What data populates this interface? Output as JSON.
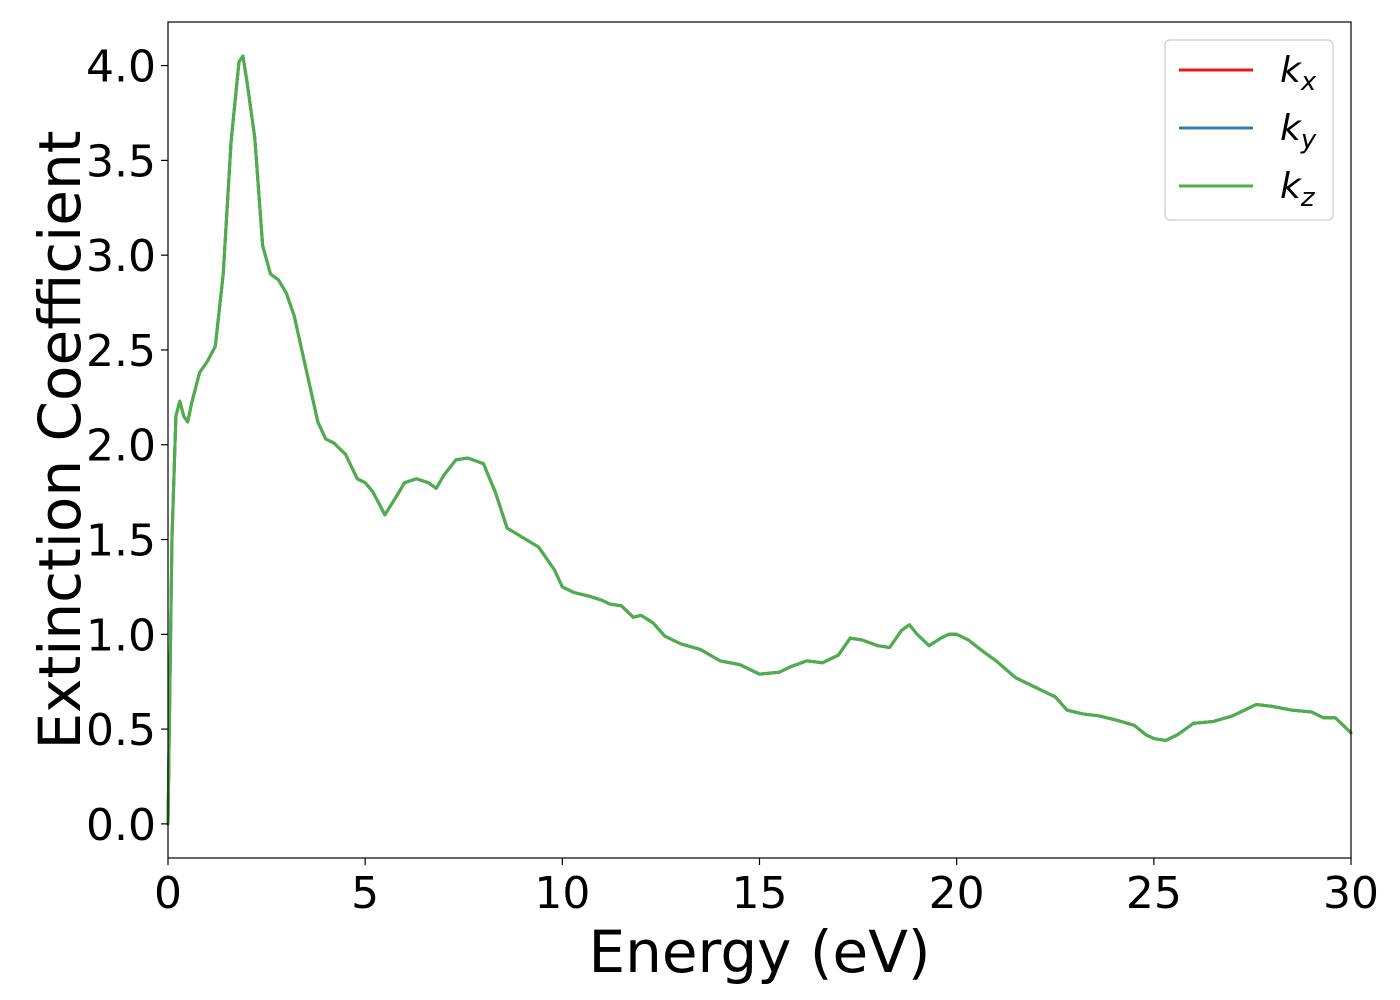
{
  "chart_data": {
    "type": "line",
    "title": "",
    "xlabel": "Energy (eV)",
    "ylabel": "Extinction Coefficient",
    "xlim": [
      0,
      30
    ],
    "ylim": [
      -0.18,
      4.23
    ],
    "xticks": [
      0,
      5,
      10,
      15,
      20,
      25,
      30
    ],
    "xtick_labels": [
      "0",
      "5",
      "10",
      "15",
      "20",
      "25",
      "30"
    ],
    "yticks": [
      0.0,
      0.5,
      1.0,
      1.5,
      2.0,
      2.5,
      3.0,
      3.5,
      4.0
    ],
    "ytick_labels": [
      "0.0",
      "0.5",
      "1.0",
      "1.5",
      "2.0",
      "2.5",
      "3.0",
      "3.5",
      "4.0"
    ],
    "grid": false,
    "legend_position": "top-right",
    "x": [
      0,
      0.1,
      0.2,
      0.3,
      0.4,
      0.5,
      0.6,
      0.8,
      1.0,
      1.2,
      1.4,
      1.6,
      1.8,
      1.9,
      2.0,
      2.2,
      2.4,
      2.6,
      2.8,
      3.0,
      3.2,
      3.5,
      3.8,
      4.0,
      4.2,
      4.5,
      4.8,
      5.0,
      5.2,
      5.5,
      5.8,
      6.0,
      6.3,
      6.6,
      6.8,
      7.0,
      7.3,
      7.6,
      8.0,
      8.3,
      8.6,
      9.0,
      9.4,
      9.8,
      10.0,
      10.3,
      10.7,
      11.0,
      11.2,
      11.5,
      11.8,
      12.0,
      12.3,
      12.6,
      13.0,
      13.5,
      14.0,
      14.5,
      15.0,
      15.5,
      15.8,
      16.2,
      16.6,
      17.0,
      17.3,
      17.6,
      18.0,
      18.3,
      18.6,
      18.8,
      19.0,
      19.3,
      19.6,
      19.8,
      20.0,
      20.3,
      20.6,
      21.0,
      21.5,
      22.0,
      22.5,
      22.8,
      23.2,
      23.6,
      24.0,
      24.5,
      24.8,
      25.0,
      25.3,
      25.6,
      26.0,
      26.5,
      27.0,
      27.3,
      27.6,
      28.0,
      28.5,
      29.0,
      29.3,
      29.6,
      30.0
    ],
    "series": [
      {
        "name": "k_x",
        "color": "#e41a1c",
        "values": [
          0.0,
          1.5,
          2.15,
          2.23,
          2.15,
          2.12,
          2.22,
          2.38,
          2.44,
          2.52,
          2.9,
          3.6,
          4.02,
          4.05,
          3.92,
          3.62,
          3.05,
          2.9,
          2.87,
          2.8,
          2.68,
          2.4,
          2.12,
          2.03,
          2.01,
          1.95,
          1.82,
          1.8,
          1.75,
          1.63,
          1.73,
          1.8,
          1.82,
          1.8,
          1.77,
          1.84,
          1.92,
          1.93,
          1.9,
          1.75,
          1.56,
          1.51,
          1.46,
          1.34,
          1.25,
          1.22,
          1.2,
          1.18,
          1.16,
          1.15,
          1.09,
          1.1,
          1.06,
          0.99,
          0.95,
          0.92,
          0.86,
          0.84,
          0.79,
          0.8,
          0.83,
          0.86,
          0.85,
          0.89,
          0.98,
          0.97,
          0.94,
          0.93,
          1.02,
          1.05,
          1.0,
          0.94,
          0.98,
          1.0,
          1.0,
          0.97,
          0.92,
          0.86,
          0.77,
          0.72,
          0.67,
          0.6,
          0.58,
          0.57,
          0.55,
          0.52,
          0.47,
          0.45,
          0.44,
          0.47,
          0.53,
          0.54,
          0.57,
          0.6,
          0.63,
          0.62,
          0.6,
          0.59,
          0.56,
          0.56,
          0.48
        ]
      },
      {
        "name": "k_y",
        "color": "#377eb8",
        "values": [
          0.0,
          1.5,
          2.15,
          2.23,
          2.15,
          2.12,
          2.22,
          2.38,
          2.44,
          2.52,
          2.9,
          3.6,
          4.02,
          4.05,
          3.92,
          3.62,
          3.05,
          2.9,
          2.87,
          2.8,
          2.68,
          2.4,
          2.12,
          2.03,
          2.01,
          1.95,
          1.82,
          1.8,
          1.75,
          1.63,
          1.73,
          1.8,
          1.82,
          1.8,
          1.77,
          1.84,
          1.92,
          1.93,
          1.9,
          1.75,
          1.56,
          1.51,
          1.46,
          1.34,
          1.25,
          1.22,
          1.2,
          1.18,
          1.16,
          1.15,
          1.09,
          1.1,
          1.06,
          0.99,
          0.95,
          0.92,
          0.86,
          0.84,
          0.79,
          0.8,
          0.83,
          0.86,
          0.85,
          0.89,
          0.98,
          0.97,
          0.94,
          0.93,
          1.02,
          1.05,
          1.0,
          0.94,
          0.98,
          1.0,
          1.0,
          0.97,
          0.92,
          0.86,
          0.77,
          0.72,
          0.67,
          0.6,
          0.58,
          0.57,
          0.55,
          0.52,
          0.47,
          0.45,
          0.44,
          0.47,
          0.53,
          0.54,
          0.57,
          0.6,
          0.63,
          0.62,
          0.6,
          0.59,
          0.56,
          0.56,
          0.48
        ]
      },
      {
        "name": "k_z",
        "color": "#4daf4a",
        "values": [
          0.0,
          1.5,
          2.15,
          2.23,
          2.15,
          2.12,
          2.22,
          2.38,
          2.44,
          2.52,
          2.9,
          3.6,
          4.02,
          4.05,
          3.92,
          3.62,
          3.05,
          2.9,
          2.87,
          2.8,
          2.68,
          2.4,
          2.12,
          2.03,
          2.01,
          1.95,
          1.82,
          1.8,
          1.75,
          1.63,
          1.73,
          1.8,
          1.82,
          1.8,
          1.77,
          1.84,
          1.92,
          1.93,
          1.9,
          1.75,
          1.56,
          1.51,
          1.46,
          1.34,
          1.25,
          1.22,
          1.2,
          1.18,
          1.16,
          1.15,
          1.09,
          1.1,
          1.06,
          0.99,
          0.95,
          0.92,
          0.86,
          0.84,
          0.79,
          0.8,
          0.83,
          0.86,
          0.85,
          0.89,
          0.98,
          0.97,
          0.94,
          0.93,
          1.02,
          1.05,
          1.0,
          0.94,
          0.98,
          1.0,
          1.0,
          0.97,
          0.92,
          0.86,
          0.77,
          0.72,
          0.67,
          0.6,
          0.58,
          0.57,
          0.55,
          0.52,
          0.47,
          0.45,
          0.44,
          0.47,
          0.53,
          0.54,
          0.57,
          0.6,
          0.63,
          0.62,
          0.6,
          0.59,
          0.56,
          0.56,
          0.48
        ]
      }
    ],
    "legend": [
      {
        "base": "k",
        "sub": "x",
        "color": "#e41a1c"
      },
      {
        "base": "k",
        "sub": "y",
        "color": "#377eb8"
      },
      {
        "base": "k",
        "sub": "z",
        "color": "#4daf4a"
      }
    ]
  }
}
